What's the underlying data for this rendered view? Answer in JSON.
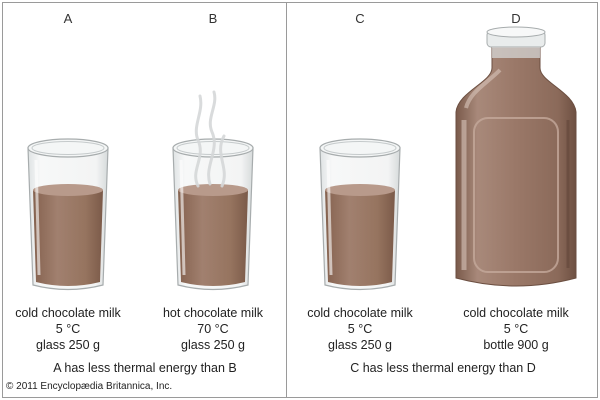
{
  "credit": "© 2011 Encyclopædia Britannica, Inc.",
  "panels": [
    {
      "comparison": "A has less thermal energy than B",
      "items": [
        {
          "letter": "A",
          "liquid": "cold chocolate milk",
          "temperature": "5 °C",
          "container": "glass 250 g",
          "steam": false
        },
        {
          "letter": "B",
          "liquid": "hot chocolate milk",
          "temperature": "70 °C",
          "container": "glass 250 g",
          "steam": true
        }
      ]
    },
    {
      "comparison": "C has less thermal energy than D",
      "items": [
        {
          "letter": "C",
          "liquid": "cold chocolate milk",
          "temperature": "5 °C",
          "container": "glass 250 g",
          "steam": false
        },
        {
          "letter": "D",
          "liquid": "cold chocolate milk",
          "temperature": "5 °C",
          "container": "bottle 900 g",
          "steam": false
        }
      ]
    }
  ],
  "colors": {
    "milk": "#9c7a6a",
    "milk_dark": "#7f5d4e",
    "milk_foam": "#b89a8b",
    "glass_edge": "#a7acad",
    "frame": "#9a9a9a"
  }
}
